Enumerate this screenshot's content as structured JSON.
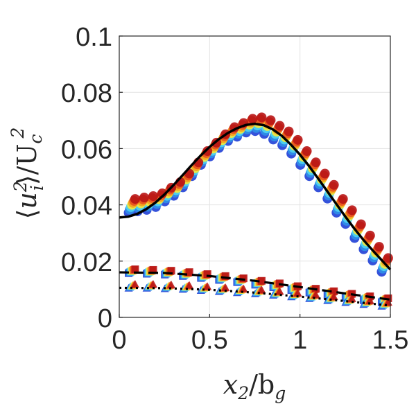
{
  "chart_data": {
    "type": "scatter",
    "title": "",
    "xlabel": "x₂/b_g",
    "ylabel": "⟨uᵢ²⟩/U_c²",
    "xlim": [
      0,
      1.5
    ],
    "ylim": [
      0,
      0.1
    ],
    "xticks": [
      0,
      0.5,
      1,
      1.5
    ],
    "xtick_labels": [
      "0",
      "0.5",
      "1",
      "1.5"
    ],
    "yticks": [
      0,
      0.02,
      0.04,
      0.06,
      0.08,
      0.1
    ],
    "ytick_labels": [
      "0",
      "0.02",
      "0.04",
      "0.06",
      "0.08",
      "0.1"
    ],
    "grid": true,
    "legend": "none",
    "scatter_colormap": [
      "#1f3fd6",
      "#2f8fe8",
      "#4fd6f0",
      "#f5e83a",
      "#f5a21c",
      "#e8501f",
      "#b81414"
    ],
    "series": [
      {
        "name": "streamwise fit (solid)",
        "style": "solid",
        "color": "#000000",
        "x": [
          0,
          0.05,
          0.1,
          0.15,
          0.2,
          0.25,
          0.3,
          0.35,
          0.4,
          0.45,
          0.5,
          0.55,
          0.6,
          0.65,
          0.7,
          0.75,
          0.8,
          0.85,
          0.9,
          0.95,
          1.0,
          1.05,
          1.1,
          1.15,
          1.2,
          1.25,
          1.3,
          1.35,
          1.4,
          1.45,
          1.5
        ],
        "y": [
          0.0355,
          0.0358,
          0.0368,
          0.0385,
          0.0408,
          0.0437,
          0.047,
          0.0505,
          0.0541,
          0.0575,
          0.0606,
          0.0633,
          0.0655,
          0.0672,
          0.0684,
          0.0688,
          0.0683,
          0.0668,
          0.0645,
          0.0614,
          0.0578,
          0.0538,
          0.0494,
          0.0449,
          0.0404,
          0.0359,
          0.0316,
          0.0276,
          0.024,
          0.0205,
          0.017
        ]
      },
      {
        "name": "second component fit (dashed)",
        "style": "dashed",
        "color": "#000000",
        "x": [
          0,
          0.25,
          0.5,
          0.75,
          1.0,
          1.25,
          1.5
        ],
        "y": [
          0.016,
          0.0158,
          0.0147,
          0.013,
          0.0108,
          0.0085,
          0.0063
        ]
      },
      {
        "name": "third component fit (dotted)",
        "style": "dotted",
        "color": "#000000",
        "x": [
          0,
          0.25,
          0.5,
          0.75,
          1.0,
          1.25,
          1.5
        ],
        "y": [
          0.0105,
          0.0104,
          0.0098,
          0.0088,
          0.0074,
          0.0058,
          0.0042
        ]
      },
      {
        "name": "streamwise data (circles)",
        "marker": "circle",
        "x": [
          0.07,
          0.12,
          0.17,
          0.22,
          0.27,
          0.32,
          0.37,
          0.42,
          0.47,
          0.52,
          0.57,
          0.62,
          0.67,
          0.72,
          0.77,
          0.82,
          0.87,
          0.92,
          0.97,
          1.02,
          1.07,
          1.12,
          1.17,
          1.22,
          1.27,
          1.32,
          1.37,
          1.42,
          1.47
        ],
        "y": [
          0.04,
          0.0405,
          0.041,
          0.042,
          0.044,
          0.046,
          0.049,
          0.053,
          0.057,
          0.06,
          0.063,
          0.0655,
          0.067,
          0.0685,
          0.069,
          0.068,
          0.066,
          0.064,
          0.061,
          0.057,
          0.053,
          0.049,
          0.045,
          0.04,
          0.036,
          0.031,
          0.027,
          0.023,
          0.019
        ]
      },
      {
        "name": "second component data (squares)",
        "marker": "square",
        "x": [
          0.07,
          0.17,
          0.27,
          0.37,
          0.47,
          0.57,
          0.67,
          0.77,
          0.87,
          0.97,
          1.07,
          1.17,
          1.27,
          1.37,
          1.47
        ],
        "y": [
          0.0165,
          0.0163,
          0.016,
          0.0155,
          0.0148,
          0.0141,
          0.0133,
          0.0124,
          0.0115,
          0.0105,
          0.0096,
          0.0087,
          0.0078,
          0.0069,
          0.0062
        ]
      },
      {
        "name": "third component data (triangles)",
        "marker": "triangle",
        "x": [
          0.07,
          0.17,
          0.27,
          0.37,
          0.47,
          0.57,
          0.67,
          0.77,
          0.87,
          0.97,
          1.07,
          1.17,
          1.27,
          1.37,
          1.47
        ],
        "y": [
          0.0112,
          0.0112,
          0.011,
          0.0108,
          0.0104,
          0.01,
          0.0096,
          0.0092,
          0.0087,
          0.0081,
          0.0075,
          0.0068,
          0.0061,
          0.0054,
          0.0048
        ]
      }
    ]
  }
}
